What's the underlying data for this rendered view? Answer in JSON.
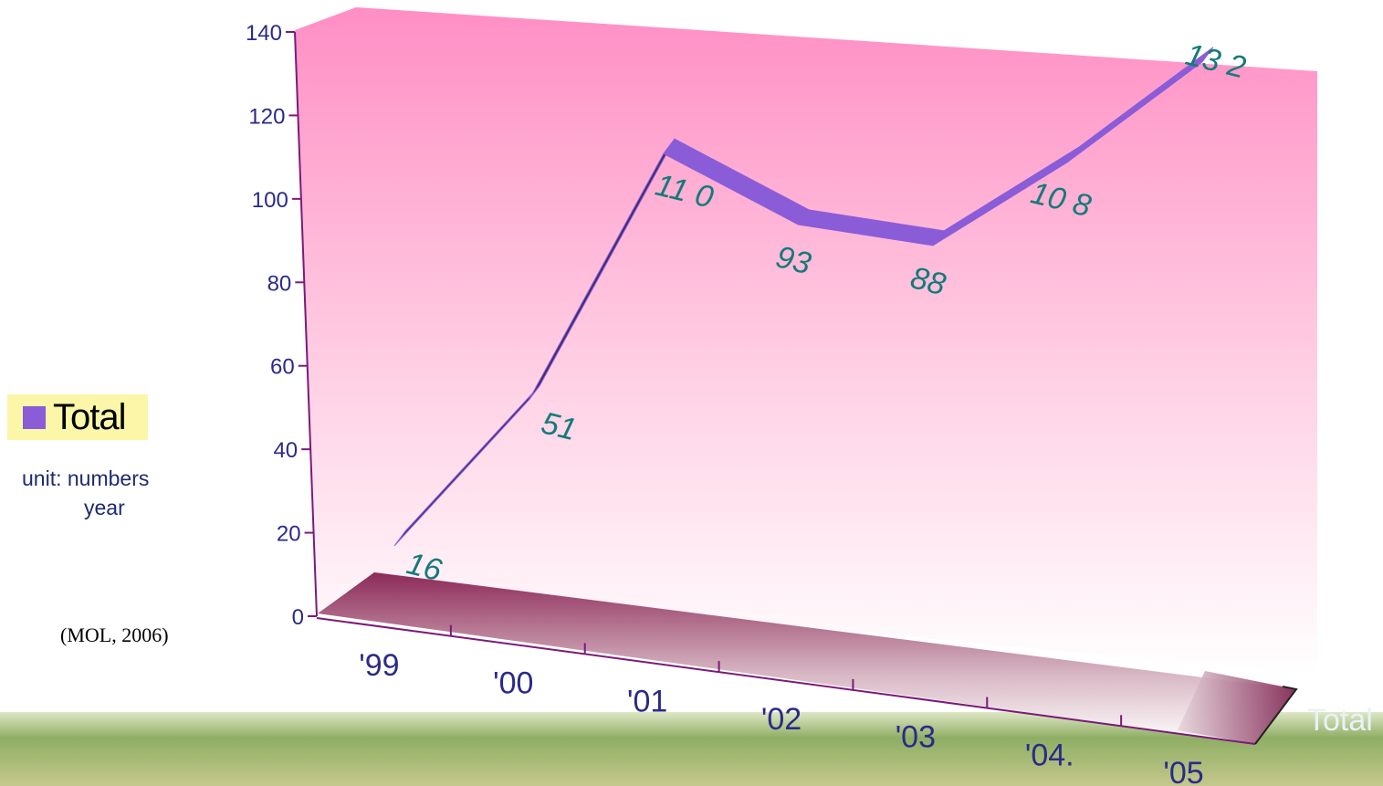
{
  "chart_data": {
    "type": "line",
    "categories": [
      "'99",
      "'00",
      "'01",
      "'02",
      "'03",
      "'04.",
      "'05"
    ],
    "series": [
      {
        "name": "Total",
        "values": [
          16,
          51,
          110,
          93,
          88,
          108,
          132
        ],
        "data_labels": [
          "16",
          "51",
          "11 0",
          "93",
          "88",
          "10 8",
          "13 2"
        ]
      }
    ],
    "y_ticks": [
      "0",
      "20",
      "40",
      "60",
      "80",
      "100",
      "120",
      "140"
    ],
    "ylim": [
      0,
      140
    ],
    "grid": false,
    "legend_position": "left",
    "depth_axis_label": "Total",
    "colors": {
      "series": "#8a5cd8",
      "series_dark": "#3e2d6a",
      "data_label": "#147a7a",
      "axis": "#7a1a7a",
      "axis_text": "#2b2a8a",
      "wall_top": "#ff96c8",
      "floor": "#8c2a58",
      "legend_bg": "#fbf6a8"
    }
  },
  "legend": {
    "label": "Total"
  },
  "notes": {
    "unit_line1": "unit: numbers",
    "unit_line2": "year",
    "source": "(MOL, 2006)"
  }
}
